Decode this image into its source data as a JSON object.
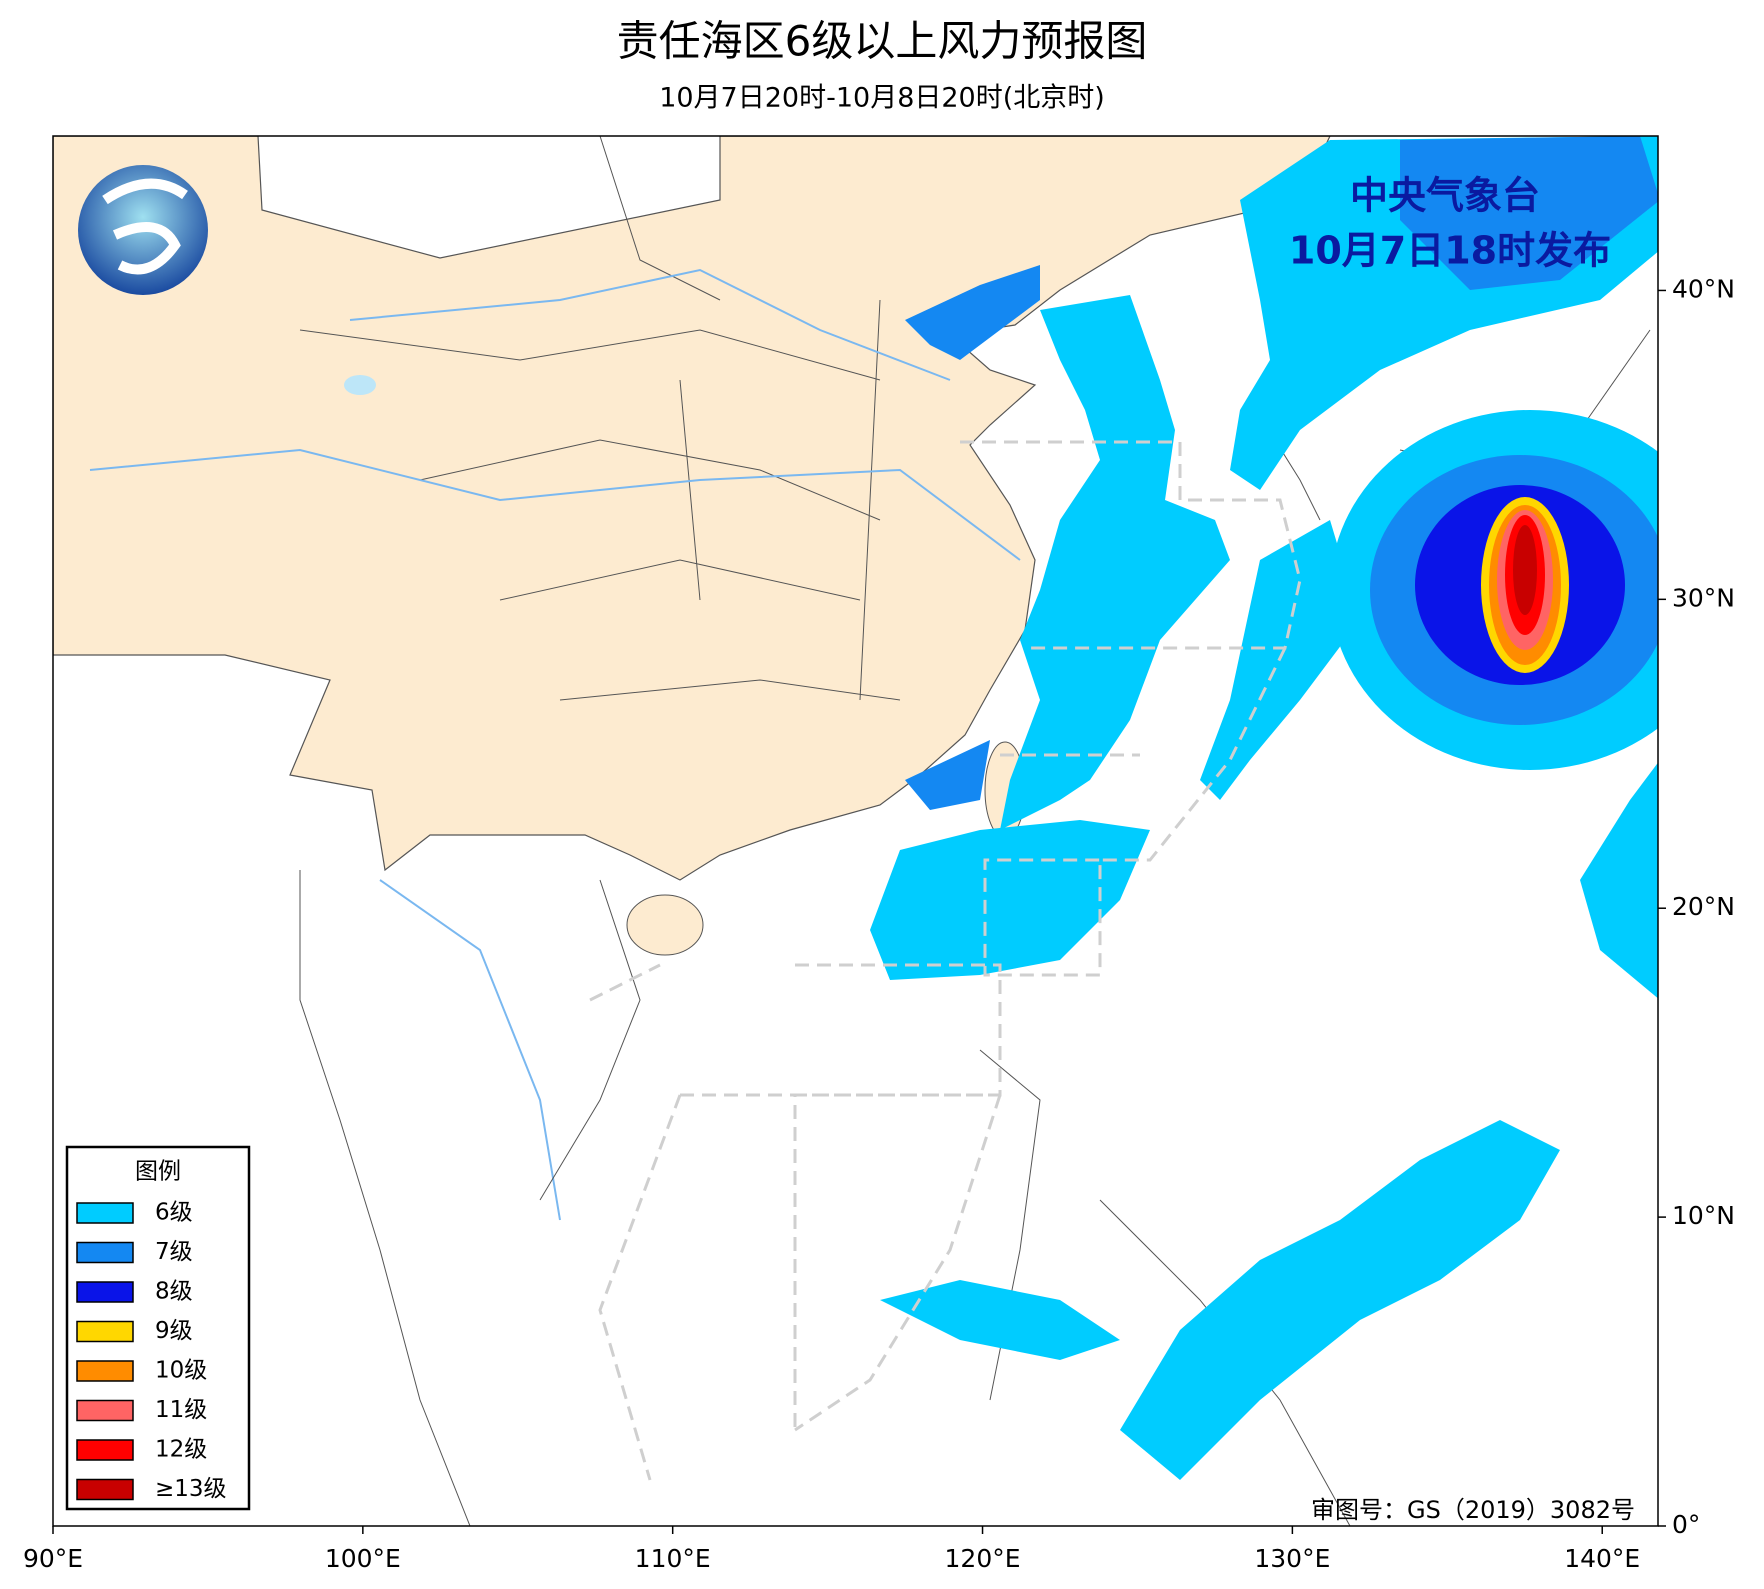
{
  "map": {
    "title": "责任海区6级以上风力预报图",
    "subtitle": "10月7日20时-10月8日20时(北京时)",
    "issuer": "中央气象台",
    "issue_time": "10月7日18时发布",
    "review_number": "审图号：GS（2019）3082号",
    "xlim": [
      90,
      141.8
    ],
    "ylim": [
      0,
      45
    ],
    "xticks": [
      {
        "value": 90,
        "label": "90°E"
      },
      {
        "value": 100,
        "label": "100°E"
      },
      {
        "value": 110,
        "label": "110°E"
      },
      {
        "value": 120,
        "label": "120°E"
      },
      {
        "value": 130,
        "label": "130°E"
      },
      {
        "value": 140,
        "label": "140°E"
      }
    ],
    "yticks": [
      {
        "value": 0,
        "label": "0°"
      },
      {
        "value": 10,
        "label": "10°N"
      },
      {
        "value": 20,
        "label": "20°N"
      },
      {
        "value": 30,
        "label": "30°N"
      },
      {
        "value": 40,
        "label": "40°N"
      }
    ],
    "legend": {
      "title": "图例",
      "items": [
        {
          "label": "6级",
          "color": "#00ccff"
        },
        {
          "label": "7级",
          "color": "#1488f2"
        },
        {
          "label": "8级",
          "color": "#0a14e8"
        },
        {
          "label": "9级",
          "color": "#ffd700"
        },
        {
          "label": "10级",
          "color": "#ff8c00"
        },
        {
          "label": "11级",
          "color": "#ff6464"
        },
        {
          "label": "12级",
          "color": "#ff0000"
        },
        {
          "label": "≥13级",
          "color": "#c80000"
        }
      ]
    }
  }
}
